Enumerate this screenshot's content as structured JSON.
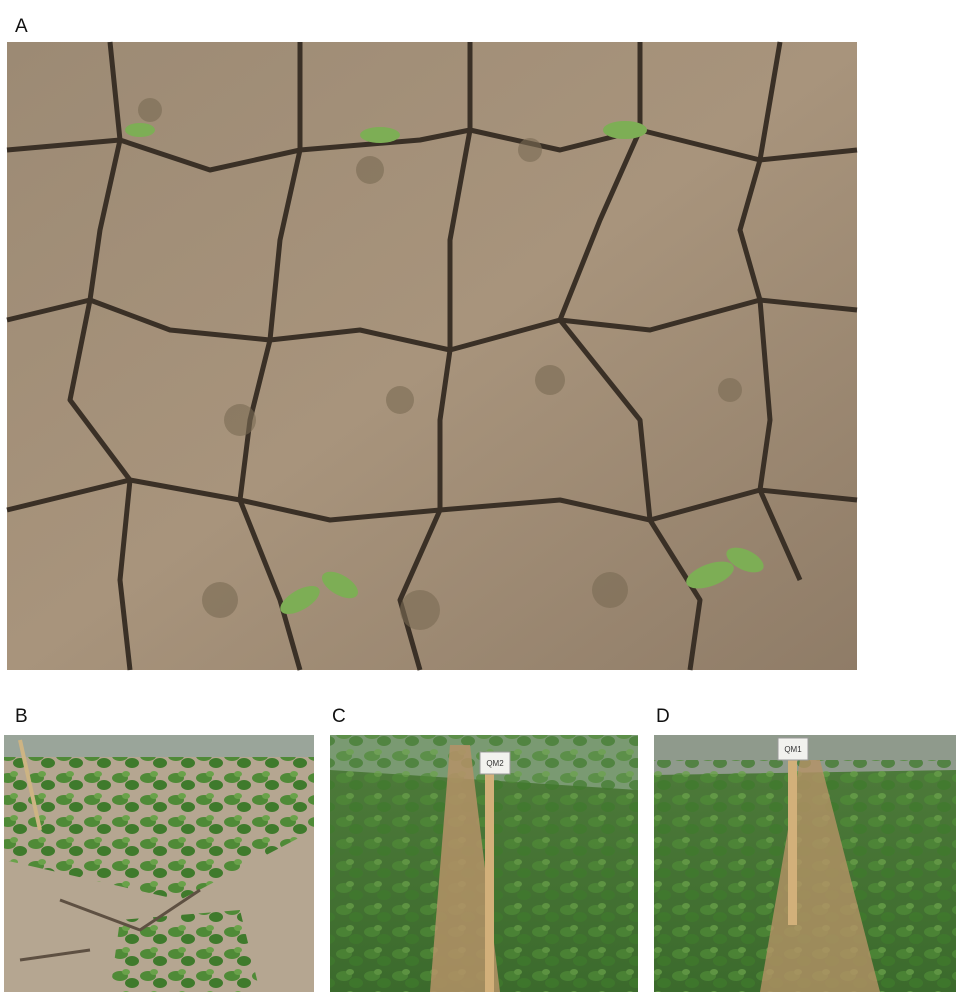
{
  "panels": [
    {
      "label": "A"
    },
    {
      "label": "B"
    },
    {
      "label": "C",
      "sign": "QM2"
    },
    {
      "label": "D",
      "sign": "QM1"
    }
  ]
}
